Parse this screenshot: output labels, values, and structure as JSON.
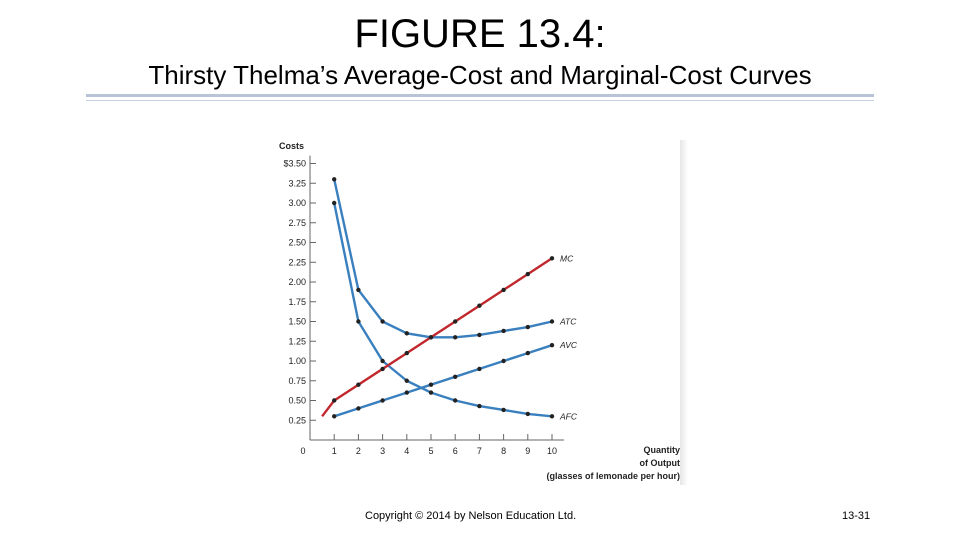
{
  "slide": {
    "title": "FIGURE 13.4:",
    "subtitle": "Thirsty Thelma’s Average-Cost and Marginal-Cost Curves"
  },
  "footer": {
    "copyright": "Copyright © 2014 by Nelson Education Ltd.",
    "page": "13-31"
  },
  "chart_data": {
    "type": "line",
    "ylabel": "Costs",
    "xlabel": [
      "Quantity",
      "of Output",
      "(glasses of lemonade per hour)"
    ],
    "x_ticks": [
      "0",
      "1",
      "2",
      "3",
      "4",
      "5",
      "6",
      "7",
      "8",
      "9",
      "10"
    ],
    "y_ticks": [
      "$3.50",
      "3.25",
      "3.00",
      "2.75",
      "2.50",
      "2.25",
      "2.00",
      "1.75",
      "1.50",
      "1.25",
      "1.00",
      "0.75",
      "0.50",
      "0.25"
    ],
    "xlim": [
      0,
      10
    ],
    "ylim": [
      0,
      3.5
    ],
    "series": [
      {
        "name": "MC",
        "color": "#c0282d",
        "x": [
          0.5,
          1,
          2,
          3,
          4,
          5,
          6,
          7,
          8,
          9,
          10
        ],
        "y": [
          0.3,
          0.5,
          0.7,
          0.9,
          1.1,
          1.3,
          1.5,
          1.7,
          1.9,
          2.1,
          2.3
        ]
      },
      {
        "name": "ATC",
        "color": "#3a7fbe",
        "x": [
          1,
          2,
          3,
          4,
          5,
          6,
          7,
          8,
          9,
          10
        ],
        "y": [
          3.3,
          1.9,
          1.5,
          1.35,
          1.3,
          1.3,
          1.33,
          1.38,
          1.43,
          1.5
        ]
      },
      {
        "name": "AVC",
        "color": "#3a7fbe",
        "x": [
          1,
          2,
          3,
          4,
          5,
          6,
          7,
          8,
          9,
          10
        ],
        "y": [
          0.3,
          0.4,
          0.5,
          0.6,
          0.7,
          0.8,
          0.9,
          1.0,
          1.1,
          1.2
        ]
      },
      {
        "name": "AFC",
        "color": "#3a7fbe",
        "x": [
          1,
          2,
          3,
          4,
          5,
          6,
          7,
          8,
          9,
          10
        ],
        "y": [
          3.0,
          1.5,
          1.0,
          0.75,
          0.6,
          0.5,
          0.43,
          0.38,
          0.33,
          0.3
        ]
      }
    ]
  }
}
